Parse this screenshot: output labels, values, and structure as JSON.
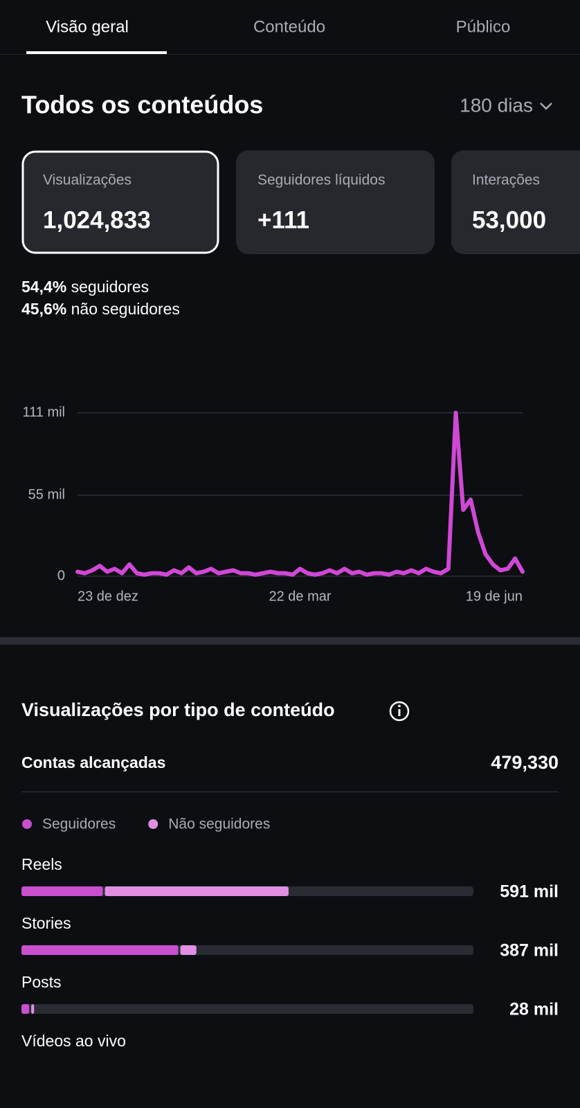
{
  "tabs": [
    "Visão geral",
    "Conteúdo",
    "Público"
  ],
  "header": {
    "title": "Todos os conteúdos",
    "period": "180 dias"
  },
  "cards": [
    {
      "label": "Visualizações",
      "value": "1,024,833"
    },
    {
      "label": "Seguidores líquidos",
      "value": "+111"
    },
    {
      "label": "Interações",
      "value": "53,000"
    }
  ],
  "audience_split": [
    {
      "value": "54,4%",
      "label": "seguidores"
    },
    {
      "value": "45,6%",
      "label": "não seguidores"
    }
  ],
  "section": {
    "title": "Visualizações por tipo de conteúdo",
    "reach_label": "Contas alcançadas",
    "reach_value": "479,330"
  },
  "chart_data": [
    {
      "type": "line",
      "color": "#d147d6",
      "categories": [
        "23 de dez",
        null,
        null,
        null,
        null,
        null,
        null,
        null,
        null,
        null,
        null,
        null,
        null,
        null,
        null,
        null,
        null,
        null,
        null,
        null,
        null,
        null,
        null,
        null,
        null,
        null,
        null,
        null,
        null,
        null,
        "22 de mar",
        null,
        null,
        null,
        null,
        null,
        null,
        null,
        null,
        null,
        null,
        null,
        null,
        null,
        null,
        null,
        null,
        null,
        null,
        null,
        null,
        null,
        null,
        null,
        null,
        null,
        null,
        null,
        null,
        null,
        "19 de jun"
      ],
      "values": [
        3,
        2,
        4,
        7,
        3,
        5,
        2,
        8,
        2,
        1,
        2,
        2,
        1,
        4,
        2,
        6,
        2,
        3,
        5,
        2,
        3,
        4,
        2,
        2,
        1,
        2,
        3,
        2,
        2,
        1,
        5,
        2,
        1,
        2,
        4,
        2,
        5,
        2,
        3,
        1,
        2,
        2,
        1,
        3,
        2,
        4,
        2,
        5,
        3,
        2,
        5,
        111,
        45,
        52,
        30,
        15,
        8,
        4,
        5,
        12,
        3
      ],
      "ylim": [
        0,
        111
      ],
      "yticks": [
        {
          "value": 0,
          "label": "0"
        },
        {
          "value": 55,
          "label": "55 mil"
        },
        {
          "value": 111,
          "label": "111 mil"
        }
      ],
      "grid": true
    },
    {
      "type": "hbar",
      "stacked": true,
      "categories": [
        "Reels",
        "Stories",
        "Posts",
        "Vídeos ao vivo"
      ],
      "series": [
        {
          "name": "Seguidores",
          "color": "#c94fd0",
          "values": [
            180,
            347,
            17,
            null
          ]
        },
        {
          "name": "Não seguidores",
          "color": "#e08fe3",
          "values": [
            411,
            40,
            11,
            null
          ]
        }
      ],
      "totals": [
        591,
        387,
        28,
        null
      ],
      "total_labels": [
        "591 mil",
        "387 mil",
        "28 mil",
        null
      ],
      "xlim": [
        0,
        1000
      ]
    }
  ]
}
